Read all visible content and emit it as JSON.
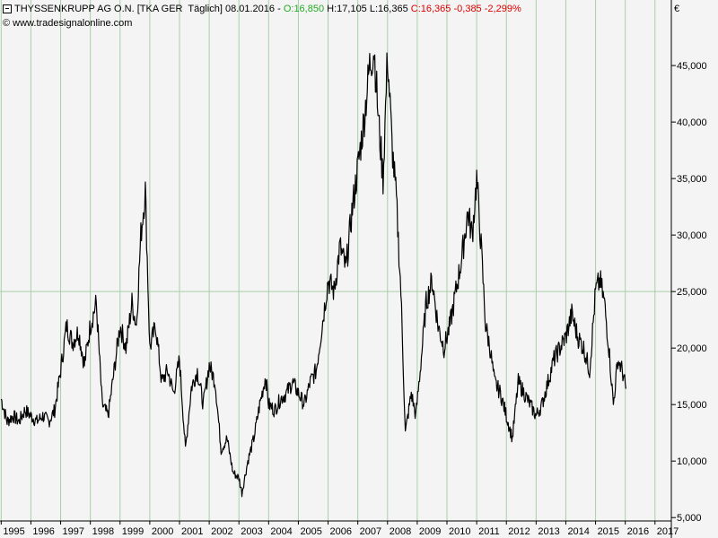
{
  "header": {
    "instrument": "THYSSENKRUPP AG O.N.",
    "tag": "[TKA GER  Täglich]",
    "date": "08.01.2016",
    "open_label": "O:",
    "open_value": "16,850",
    "high": "H:17,105",
    "low": "L:16,365",
    "close_label": "C:",
    "close_value": "16,365",
    "change": "-0,385",
    "change_pct": "-2,299%",
    "copyright": "© www.tradesignalonline.com",
    "currency": "€"
  },
  "colors": {
    "background": "#f4f4f4",
    "grid": "#a9cfa9",
    "line": "#000000",
    "up": "#22aa22",
    "down": "#dd0000"
  },
  "chart_data": {
    "type": "line",
    "title": "THYSSENKRUPP AG O.N.",
    "xlabel": "",
    "ylabel": "",
    "xlim": [
      1994.96,
      2017.55
    ],
    "ylim": [
      4.7,
      50.8
    ],
    "grid": true,
    "ytick_labels": [
      "5,000",
      "10,000",
      "15,000",
      "20,000",
      "25,000",
      "30,000",
      "35,000",
      "40,000",
      "45,000"
    ],
    "ytick_values": [
      5,
      10,
      15,
      20,
      25,
      30,
      35,
      40,
      45
    ],
    "xtick_labels": [
      "1995",
      "1996",
      "1997",
      "1998",
      "1999",
      "2000",
      "2001",
      "2002",
      "2003",
      "2004",
      "2005",
      "2006",
      "2007",
      "2008",
      "2009",
      "2010",
      "2011",
      "2012",
      "2013",
      "2014",
      "2015",
      "2016",
      "2017"
    ],
    "xtick_values": [
      1995,
      1996,
      1997,
      1998,
      1999,
      2000,
      2001,
      2002,
      2003,
      2004,
      2005,
      2006,
      2007,
      2008,
      2009,
      2010,
      2011,
      2012,
      2013,
      2014,
      2015,
      2016,
      2017
    ],
    "series": [
      {
        "x": [
          1995.0,
          1995.2,
          1995.4,
          1995.6,
          1995.8,
          1996.0,
          1996.2,
          1996.4,
          1996.6,
          1996.8,
          1997.0,
          1997.2,
          1997.4,
          1997.6,
          1997.8,
          1998.0,
          1998.2,
          1998.4,
          1998.6,
          1998.8,
          1999.0,
          1999.2,
          1999.4,
          1999.55,
          1999.7,
          1999.85,
          2000.0,
          2000.2,
          2000.4,
          2000.6,
          2000.8,
          2001.0,
          2001.2,
          2001.4,
          2001.6,
          2001.8,
          2002.0,
          2002.2,
          2002.4,
          2002.6,
          2002.8,
          2003.0,
          2003.1,
          2003.3,
          2003.5,
          2003.7,
          2003.9,
          2004.0,
          2004.2,
          2004.4,
          2004.6,
          2004.8,
          2005.0,
          2005.2,
          2005.4,
          2005.6,
          2005.8,
          2006.0,
          2006.2,
          2006.4,
          2006.6,
          2006.8,
          2007.0,
          2007.2,
          2007.4,
          2007.55,
          2007.7,
          2007.85,
          2008.0,
          2008.15,
          2008.3,
          2008.45,
          2008.6,
          2008.8,
          2008.95,
          2009.1,
          2009.3,
          2009.5,
          2009.7,
          2009.9,
          2010.1,
          2010.3,
          2010.5,
          2010.7,
          2010.85,
          2011.0,
          2011.15,
          2011.3,
          2011.45,
          2011.6,
          2011.8,
          2012.0,
          2012.2,
          2012.4,
          2012.6,
          2012.8,
          2013.0,
          2013.2,
          2013.4,
          2013.6,
          2013.8,
          2014.0,
          2014.2,
          2014.4,
          2014.6,
          2014.8,
          2015.0,
          2015.15,
          2015.3,
          2015.45,
          2015.6,
          2015.75,
          2015.9,
          2016.02
        ],
        "y": [
          15.5,
          13.5,
          14.0,
          13.5,
          14.5,
          14.0,
          13.5,
          14.0,
          13.5,
          14.5,
          18.0,
          22.0,
          20.5,
          21.5,
          18.5,
          22.0,
          24.0,
          15.0,
          14.0,
          18.0,
          22.0,
          20.0,
          24.0,
          22.0,
          30.0,
          34.0,
          20.0,
          22.0,
          17.0,
          18.0,
          16.0,
          19.0,
          11.0,
          16.5,
          18.0,
          15.0,
          18.5,
          17.0,
          11.0,
          12.0,
          9.0,
          8.5,
          7.2,
          10.0,
          12.0,
          15.0,
          17.5,
          15.0,
          14.5,
          15.5,
          16.0,
          17.0,
          16.0,
          15.0,
          17.0,
          18.0,
          22.0,
          26.0,
          25.0,
          29.0,
          27.0,
          32.0,
          36.0,
          40.0,
          45.0,
          46.5,
          40.0,
          35.0,
          46.0,
          38.0,
          33.0,
          25.0,
          12.5,
          16.0,
          14.0,
          18.0,
          24.0,
          26.0,
          22.0,
          20.0,
          22.0,
          25.0,
          28.0,
          32.0,
          30.0,
          35.0,
          29.0,
          22.0,
          20.0,
          17.0,
          16.0,
          14.0,
          12.0,
          17.0,
          16.0,
          15.0,
          14.0,
          15.0,
          17.0,
          19.0,
          20.0,
          21.0,
          23.0,
          21.0,
          20.0,
          18.0,
          25.0,
          26.0,
          24.0,
          20.0,
          15.0,
          19.0,
          18.0,
          16.4
        ]
      }
    ]
  }
}
